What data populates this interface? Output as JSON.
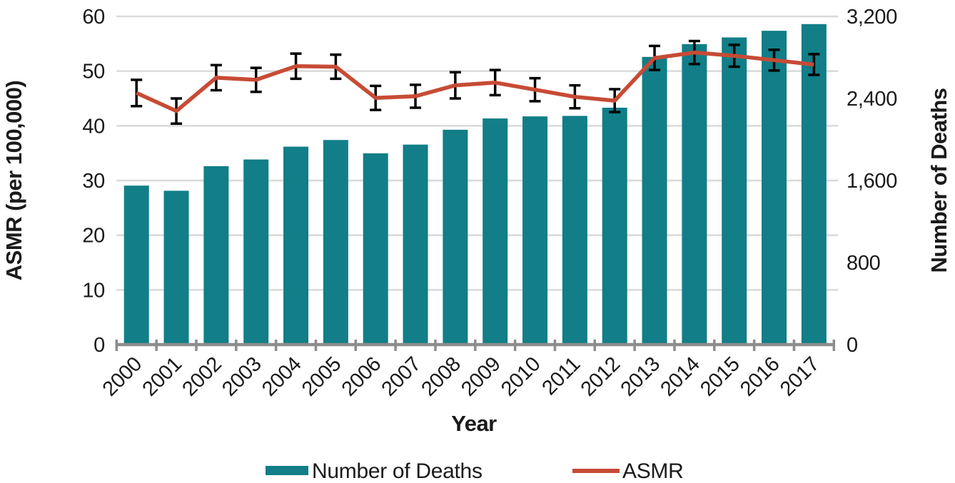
{
  "chart_data": {
    "type": "bar",
    "subtype": "bar-line-combo",
    "title": "",
    "xlabel": "Year",
    "grid": true,
    "legend_position": "bottom",
    "categories": [
      "2000",
      "2001",
      "2002",
      "2003",
      "2004",
      "2005",
      "2006",
      "2007",
      "2008",
      "2009",
      "2010",
      "2011",
      "2012",
      "2013",
      "2014",
      "2015",
      "2016",
      "2017"
    ],
    "series": [
      {
        "name": "Number of Deaths",
        "mark": "bar",
        "axis": "right",
        "values": [
          1550,
          1500,
          1740,
          1805,
          1930,
          1995,
          1865,
          1950,
          2095,
          2205,
          2225,
          2230,
          2310,
          2805,
          2930,
          2995,
          3060,
          3125
        ]
      },
      {
        "name": "ASMR",
        "mark": "line",
        "axis": "left",
        "values": [
          46.0,
          42.7,
          48.8,
          48.4,
          50.9,
          50.8,
          45.1,
          45.4,
          47.4,
          47.9,
          46.6,
          45.3,
          44.6,
          52.4,
          53.4,
          52.8,
          52.0,
          51.2
        ],
        "error_plus_minus": [
          2.4,
          2.3,
          2.3,
          2.2,
          2.3,
          2.2,
          2.2,
          2.1,
          2.4,
          2.3,
          2.1,
          2.1,
          2.1,
          2.2,
          2.1,
          2.0,
          1.9,
          1.9
        ]
      }
    ],
    "left_axis": {
      "label": "ASMR (per 100,000)",
      "range": [
        0,
        60
      ],
      "ticks": [
        0,
        10,
        20,
        30,
        40,
        50,
        60
      ],
      "tick_labels": [
        "0",
        "10",
        "20",
        "30",
        "40",
        "50",
        "60"
      ]
    },
    "right_axis": {
      "label": "Number of Deaths",
      "range": [
        0,
        3200
      ],
      "ticks": [
        0,
        800,
        1600,
        2400,
        3200
      ],
      "tick_labels": [
        "0",
        "800",
        "1,600",
        "2,400",
        "3,200"
      ]
    },
    "legend": [
      {
        "label": "Number of Deaths",
        "swatch": "bar"
      },
      {
        "label": "ASMR",
        "swatch": "line"
      }
    ]
  },
  "colors": {
    "bar": "#117E88",
    "line": "#C74B35",
    "error_bar": "#000000",
    "gridline": "#D9D9D9",
    "axis": "#8C8C8C",
    "text": "#1A1A1A"
  }
}
